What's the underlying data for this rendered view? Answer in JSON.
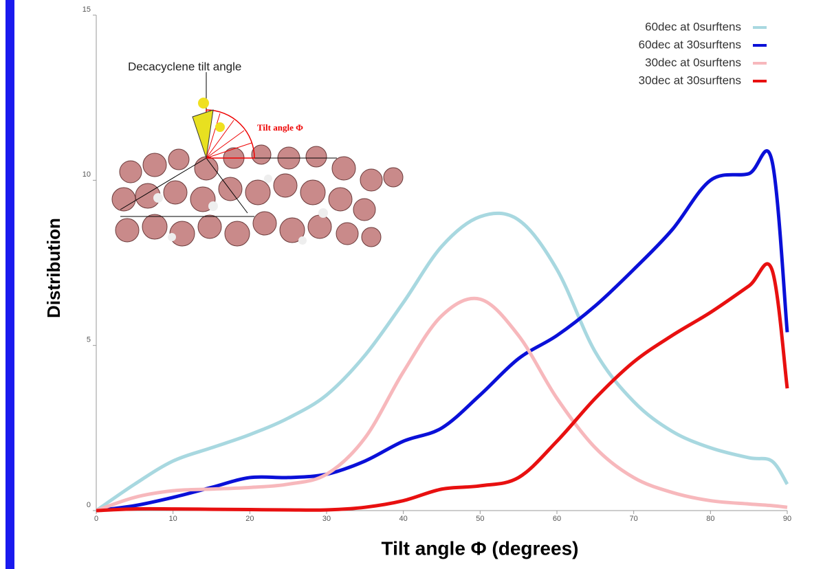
{
  "chart_data": {
    "type": "line",
    "xlabel": "Tilt angle Φ (degrees)",
    "ylabel": "Distribution",
    "annotations": [
      "Decacyclene tilt angle",
      "Tilt angle Φ"
    ],
    "x": [
      0,
      5,
      10,
      15,
      20,
      25,
      30,
      35,
      40,
      45,
      50,
      55,
      60,
      65,
      70,
      75,
      80,
      85,
      88,
      90
    ],
    "series": [
      {
        "name": "60dec at 0surftens",
        "color": "#a8d8e0",
        "values": [
          0,
          0.8,
          1.5,
          1.9,
          2.3,
          2.8,
          3.5,
          4.7,
          6.3,
          8.0,
          8.9,
          8.8,
          7.3,
          4.8,
          3.3,
          2.4,
          1.9,
          1.6,
          1.5,
          0.8
        ]
      },
      {
        "name": "60dec at 30surftens",
        "color": "#0a10d8",
        "values": [
          0,
          0.15,
          0.4,
          0.7,
          1.0,
          1.0,
          1.1,
          1.5,
          2.1,
          2.5,
          3.5,
          4.6,
          5.3,
          6.2,
          7.3,
          8.5,
          10.0,
          10.2,
          10.6,
          5.4
        ]
      },
      {
        "name": "30dec at 0surftens",
        "color": "#f7b8bc",
        "values": [
          0,
          0.4,
          0.6,
          0.65,
          0.7,
          0.8,
          1.1,
          2.2,
          4.2,
          5.9,
          6.4,
          5.3,
          3.4,
          1.9,
          1.0,
          0.55,
          0.3,
          0.2,
          0.15,
          0.1
        ]
      },
      {
        "name": "30dec at 30surftens",
        "color": "#e81010",
        "values": [
          0,
          0.05,
          0.05,
          0.04,
          0.03,
          0.02,
          0.02,
          0.1,
          0.3,
          0.65,
          0.75,
          1.0,
          2.1,
          3.4,
          4.5,
          5.3,
          6.0,
          6.8,
          7.3,
          3.7
        ]
      }
    ],
    "xlim": [
      0,
      90
    ],
    "xticks": [
      0,
      10,
      20,
      30,
      40,
      50,
      60,
      70,
      80,
      90
    ],
    "ylim": [
      0,
      15
    ],
    "yticks": [
      0,
      5,
      10,
      15
    ],
    "legend": "upper right"
  }
}
